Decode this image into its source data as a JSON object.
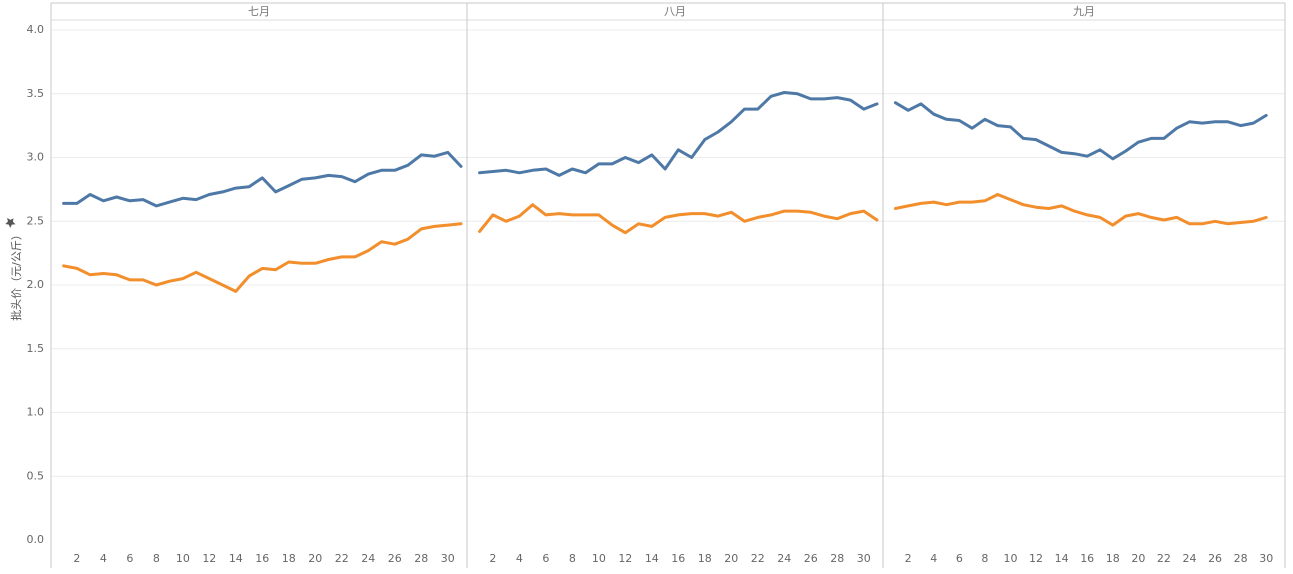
{
  "chart_data": {
    "type": "line",
    "ylabel": "批头价（元/公斤）",
    "ylim": [
      0,
      4.0
    ],
    "yticks": [
      0.0,
      0.5,
      1.0,
      1.5,
      2.0,
      2.5,
      3.0,
      3.5,
      4.0
    ],
    "ytick_labels": [
      "0.0",
      "0.5",
      "1.0",
      "1.5",
      "2.0",
      "2.5",
      "3.0",
      "3.5",
      "4.0"
    ],
    "xticks": [
      2,
      4,
      6,
      8,
      10,
      12,
      14,
      16,
      18,
      20,
      22,
      24,
      26,
      28,
      30
    ],
    "xlim": [
      0.5,
      31
    ],
    "grid": "horizontal",
    "colors": {
      "series_blue": "#4e79a7",
      "series_orange": "#f28e2b",
      "grid": "#ececec",
      "divider": "#c8c8c8"
    },
    "pin_icon": "pin-icon",
    "panels": [
      {
        "title": "七月",
        "series": [
          {
            "color": "#4e79a7",
            "x": [
              1,
              2,
              3,
              4,
              5,
              6,
              7,
              8,
              9,
              10,
              11,
              12,
              13,
              14,
              15,
              16,
              17,
              18,
              19,
              20,
              21,
              22,
              23,
              24,
              25,
              26,
              27,
              28,
              29,
              30,
              31
            ],
            "values": [
              2.64,
              2.64,
              2.71,
              2.66,
              2.69,
              2.66,
              2.67,
              2.62,
              2.65,
              2.68,
              2.67,
              2.71,
              2.73,
              2.76,
              2.77,
              2.84,
              2.73,
              2.78,
              2.83,
              2.84,
              2.86,
              2.85,
              2.81,
              2.87,
              2.9,
              2.9,
              2.94,
              3.02,
              3.01,
              3.04,
              2.93
            ]
          },
          {
            "color": "#f28e2b",
            "x": [
              1,
              2,
              3,
              4,
              5,
              6,
              7,
              8,
              9,
              10,
              11,
              12,
              13,
              14,
              15,
              16,
              17,
              18,
              19,
              20,
              21,
              22,
              23,
              24,
              25,
              26,
              27,
              28,
              29,
              30,
              31
            ],
            "values": [
              2.15,
              2.13,
              2.08,
              2.09,
              2.08,
              2.04,
              2.04,
              2.0,
              2.03,
              2.05,
              2.1,
              2.05,
              2.0,
              1.95,
              2.07,
              2.13,
              2.12,
              2.18,
              2.17,
              2.17,
              2.2,
              2.22,
              2.22,
              2.27,
              2.34,
              2.32,
              2.36,
              2.44,
              2.46,
              2.47,
              2.48
            ]
          }
        ]
      },
      {
        "title": "八月",
        "series": [
          {
            "color": "#4e79a7",
            "x": [
              1,
              2,
              3,
              4,
              5,
              6,
              7,
              8,
              9,
              10,
              11,
              12,
              13,
              14,
              15,
              16,
              17,
              18,
              19,
              20,
              21,
              22,
              23,
              24,
              25,
              26,
              27,
              28,
              29,
              30,
              31
            ],
            "values": [
              2.88,
              2.89,
              2.9,
              2.88,
              2.9,
              2.91,
              2.86,
              2.91,
              2.88,
              2.95,
              2.95,
              3.0,
              2.96,
              3.02,
              2.91,
              3.06,
              3.0,
              3.14,
              3.2,
              3.28,
              3.38,
              3.38,
              3.48,
              3.51,
              3.5,
              3.46,
              3.46,
              3.47,
              3.45,
              3.38,
              3.42
            ]
          },
          {
            "color": "#f28e2b",
            "x": [
              1,
              2,
              3,
              4,
              5,
              6,
              7,
              8,
              9,
              10,
              11,
              12,
              13,
              14,
              15,
              16,
              17,
              18,
              19,
              20,
              21,
              22,
              23,
              24,
              25,
              26,
              27,
              28,
              29,
              30,
              31
            ],
            "values": [
              2.42,
              2.55,
              2.5,
              2.54,
              2.63,
              2.55,
              2.56,
              2.55,
              2.55,
              2.55,
              2.47,
              2.41,
              2.48,
              2.46,
              2.53,
              2.55,
              2.56,
              2.56,
              2.54,
              2.57,
              2.5,
              2.53,
              2.55,
              2.58,
              2.58,
              2.57,
              2.54,
              2.52,
              2.56,
              2.58,
              2.51
            ]
          }
        ]
      },
      {
        "title": "九月",
        "series": [
          {
            "color": "#4e79a7",
            "x": [
              1,
              2,
              3,
              4,
              5,
              6,
              7,
              8,
              9,
              10,
              11,
              12,
              13,
              14,
              15,
              16,
              17,
              18,
              19,
              20,
              21,
              22,
              23,
              24,
              25,
              26,
              27,
              28,
              29,
              30
            ],
            "values": [
              3.43,
              3.37,
              3.42,
              3.34,
              3.3,
              3.29,
              3.23,
              3.3,
              3.25,
              3.24,
              3.15,
              3.14,
              3.09,
              3.04,
              3.03,
              3.01,
              3.06,
              2.99,
              3.05,
              3.12,
              3.15,
              3.15,
              3.23,
              3.28,
              3.27,
              3.28,
              3.28,
              3.25,
              3.27,
              3.33
            ]
          },
          {
            "color": "#f28e2b",
            "x": [
              1,
              2,
              3,
              4,
              5,
              6,
              7,
              8,
              9,
              10,
              11,
              12,
              13,
              14,
              15,
              16,
              17,
              18,
              19,
              20,
              21,
              22,
              23,
              24,
              25,
              26,
              27,
              28,
              29,
              30
            ],
            "values": [
              2.6,
              2.62,
              2.64,
              2.65,
              2.63,
              2.65,
              2.65,
              2.66,
              2.71,
              2.67,
              2.63,
              2.61,
              2.6,
              2.62,
              2.58,
              2.55,
              2.53,
              2.47,
              2.54,
              2.56,
              2.53,
              2.51,
              2.53,
              2.48,
              2.48,
              2.5,
              2.48,
              2.49,
              2.5,
              2.53
            ]
          }
        ]
      }
    ]
  }
}
